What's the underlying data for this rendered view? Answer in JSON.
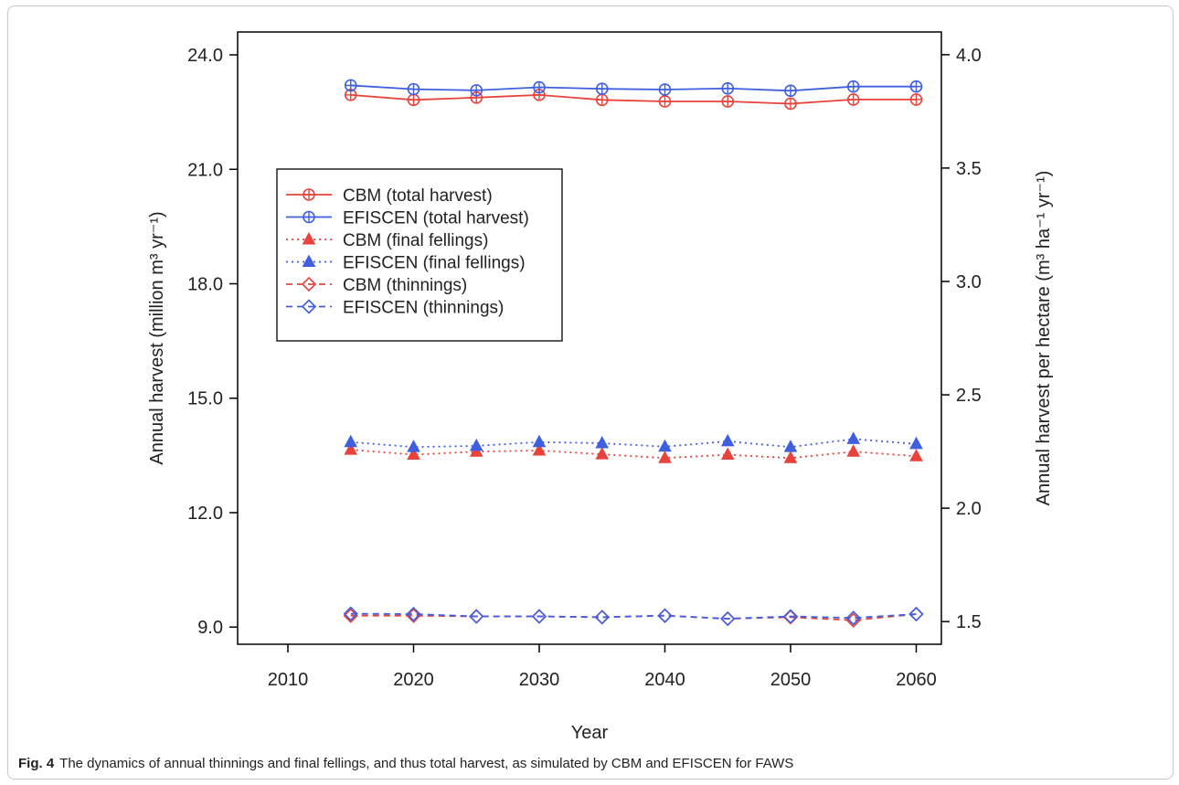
{
  "figure": {
    "caption_label": "Fig. 4",
    "caption_text": "The dynamics of annual thinnings and final fellings, and thus total harvest, as simulated by CBM and EFISCEN for FAWS"
  },
  "chart_data": {
    "type": "line",
    "xlabel": "Year",
    "ylabel": "Annual harvest (million m³ yr⁻¹)",
    "y2label": "Annual harvest per hectare (m³ ha⁻¹ yr⁻¹)",
    "xlim": [
      2006,
      2062
    ],
    "ylim": [
      8.55,
      24.6
    ],
    "y2lim": [
      1.4,
      4.1
    ],
    "xticks": [
      2010,
      2020,
      2030,
      2040,
      2050,
      2060
    ],
    "yticks": [
      9.0,
      12.0,
      15.0,
      18.0,
      21.0,
      24.0
    ],
    "y2ticks": [
      1.5,
      2.0,
      2.5,
      3.0,
      3.5,
      4.0
    ],
    "grid": false,
    "legend_position": "upper-left",
    "x": [
      2015,
      2020,
      2025,
      2030,
      2035,
      2040,
      2045,
      2050,
      2055,
      2060
    ],
    "series": [
      {
        "name": "CBM (total harvest)",
        "color": "#e8433a",
        "linestyle": "solid",
        "marker": "circle-plus",
        "values": [
          22.95,
          22.82,
          22.88,
          22.95,
          22.82,
          22.78,
          22.78,
          22.72,
          22.83,
          22.83
        ]
      },
      {
        "name": "EFISCEN (total harvest)",
        "color": "#3f5fe0",
        "linestyle": "solid",
        "marker": "circle-plus",
        "values": [
          23.2,
          23.1,
          23.07,
          23.15,
          23.11,
          23.09,
          23.12,
          23.06,
          23.17,
          23.17
        ]
      },
      {
        "name": "CBM (final fellings)",
        "color": "#e8433a",
        "linestyle": "dotted",
        "marker": "triangle",
        "values": [
          13.65,
          13.52,
          13.6,
          13.63,
          13.53,
          13.43,
          13.52,
          13.43,
          13.6,
          13.48
        ]
      },
      {
        "name": "EFISCEN (final fellings)",
        "color": "#3f5fe0",
        "linestyle": "dotted",
        "marker": "triangle",
        "values": [
          13.85,
          13.72,
          13.75,
          13.85,
          13.82,
          13.73,
          13.87,
          13.72,
          13.93,
          13.8
        ]
      },
      {
        "name": "CBM (thinnings)",
        "color": "#e8433a",
        "linestyle": "dashed",
        "marker": "diamond",
        "values": [
          9.3,
          9.3,
          9.28,
          9.28,
          9.26,
          9.3,
          9.22,
          9.26,
          9.18,
          9.34
        ]
      },
      {
        "name": "EFISCEN (thinnings)",
        "color": "#3f5fe0",
        "linestyle": "dashed",
        "marker": "diamond",
        "values": [
          9.35,
          9.34,
          9.28,
          9.28,
          9.26,
          9.3,
          9.22,
          9.28,
          9.24,
          9.34
        ]
      }
    ]
  }
}
